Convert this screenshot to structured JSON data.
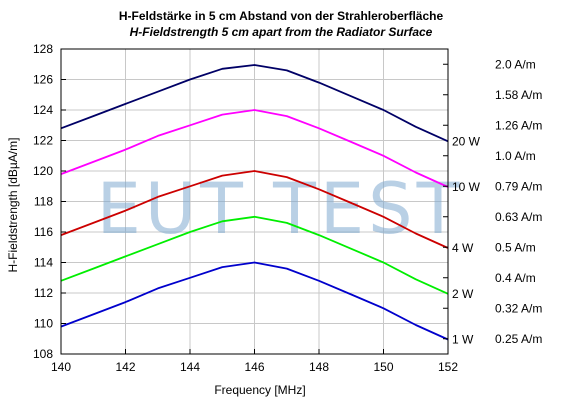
{
  "chart_data": {
    "type": "line",
    "title": "H-Feldstärke in 5 cm Abstand von der Strahleroberfläche",
    "subtitle": "H-Fieldstrength 5 cm apart from the Radiator Surface",
    "xlabel": "Frequency [MHz]",
    "ylabel": "H-Fieldstrength [dBµA/m]",
    "xlim": [
      140,
      152
    ],
    "ylim": [
      108,
      128
    ],
    "x_ticks": [
      "140",
      "142",
      "144",
      "146",
      "148",
      "150",
      "152"
    ],
    "y_ticks": [
      "108",
      "110",
      "112",
      "114",
      "116",
      "118",
      "120",
      "122",
      "124",
      "126",
      "128"
    ],
    "right_axis_labels": [
      {
        "y": 109,
        "label": "0.25 A/m"
      },
      {
        "y": 111,
        "label": "0.32 A/m"
      },
      {
        "y": 113,
        "label": "0.4 A/m"
      },
      {
        "y": 115,
        "label": "0.5 A/m"
      },
      {
        "y": 117,
        "label": "0.63 A/m"
      },
      {
        "y": 119,
        "label": "0.79 A/m"
      },
      {
        "y": 121,
        "label": "1.0 A/m"
      },
      {
        "y": 123,
        "label": "1.26 A/m"
      },
      {
        "y": 125,
        "label": "1.58 A/m"
      },
      {
        "y": 127,
        "label": "2.0 A/m"
      }
    ],
    "grid": true,
    "x": [
      140,
      141,
      142,
      143,
      144,
      145,
      146,
      147,
      148,
      149,
      150,
      151,
      152
    ],
    "series": [
      {
        "name": "20 W",
        "color": "#000066",
        "values": [
          122.8,
          123.6,
          124.4,
          125.2,
          126.0,
          126.7,
          126.95,
          126.6,
          125.8,
          124.9,
          124.0,
          122.9,
          121.95
        ]
      },
      {
        "name": "10 W",
        "color": "#ff00ff",
        "values": [
          119.8,
          120.6,
          121.4,
          122.3,
          123.0,
          123.7,
          124.0,
          123.6,
          122.8,
          121.9,
          121.0,
          119.9,
          118.95
        ]
      },
      {
        "name": "4 W",
        "color": "#cc0000",
        "values": [
          115.8,
          116.6,
          117.4,
          118.3,
          119.0,
          119.7,
          120.0,
          119.6,
          118.8,
          117.9,
          117.0,
          115.9,
          114.95
        ]
      },
      {
        "name": "2 W",
        "color": "#00ee00",
        "values": [
          112.8,
          113.6,
          114.4,
          115.2,
          116.0,
          116.7,
          117.0,
          116.6,
          115.8,
          114.9,
          114.0,
          112.9,
          111.95
        ]
      },
      {
        "name": "1 W",
        "color": "#0000cc",
        "values": [
          109.8,
          110.6,
          111.4,
          112.3,
          113.0,
          113.7,
          114.0,
          113.6,
          112.8,
          111.9,
          111.0,
          109.9,
          108.95
        ]
      }
    ],
    "watermark": "EUT TEST"
  }
}
